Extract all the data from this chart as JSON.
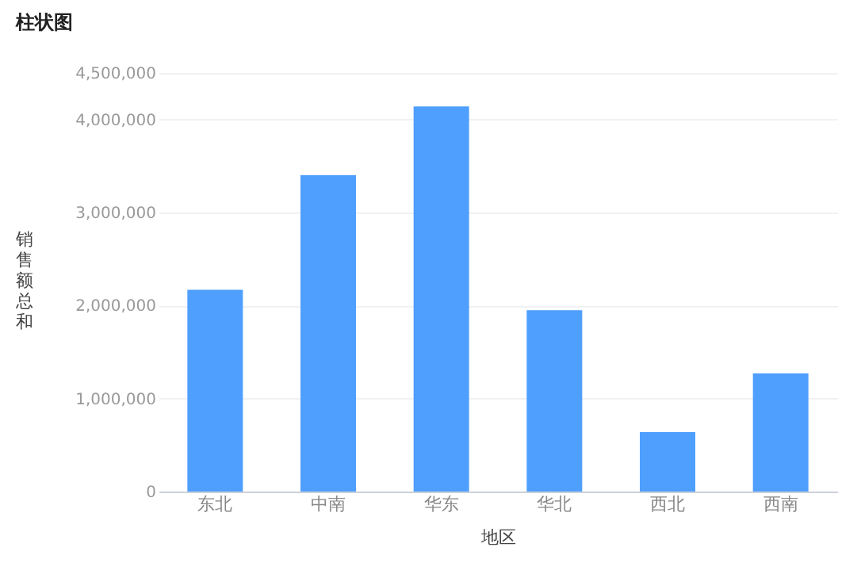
{
  "chart_data": {
    "type": "bar",
    "title": "柱状图",
    "xlabel": "地区",
    "ylabel": "销售额总和",
    "categories": [
      "东北",
      "中南",
      "华东",
      "华北",
      "西北",
      "西南"
    ],
    "series": [
      {
        "color": "#4f9fff",
        "values": [
          2170000,
          3400000,
          4140000,
          1950000,
          640000,
          1270000
        ]
      }
    ],
    "ylim": [
      0,
      4500000
    ],
    "yticks": [
      0,
      {
        "value": 1000000,
        "label": "1,000,000"
      },
      {
        "value": 2000000,
        "label": "2,000,000"
      },
      {
        "value": 3000000,
        "label": "3,000,000"
      },
      {
        "value": 4000000,
        "label": "4,000,000"
      },
      {
        "value": 4500000,
        "label": "4,500,000"
      }
    ],
    "grid": "y"
  }
}
